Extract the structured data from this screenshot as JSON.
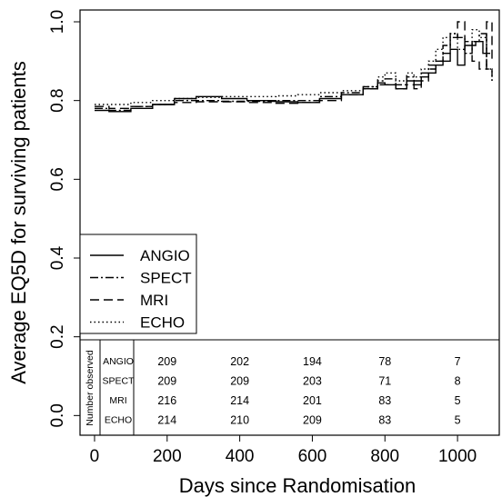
{
  "chart_data": {
    "type": "line",
    "xlabel": "Days since Randomisation",
    "ylabel": "Average EQ5D for surviving patients",
    "xlim": [
      -40,
      1115
    ],
    "ylim": [
      -0.05,
      1.03
    ],
    "x_ticks": [
      0,
      200,
      400,
      600,
      800,
      1000
    ],
    "y_ticks": [
      0.0,
      0.2,
      0.4,
      0.6,
      0.8,
      1.0
    ],
    "x_tick_labels": [
      "0",
      "200",
      "400",
      "600",
      "800",
      "1000"
    ],
    "y_tick_labels": [
      "0.0",
      "0.2",
      "0.4",
      "0.6",
      "0.8",
      "1.0"
    ],
    "grid": false,
    "legend_position": "bottom-left",
    "series": [
      {
        "name": "ANGIO",
        "style": "solid",
        "points": [
          [
            0,
            0.775
          ],
          [
            40,
            0.772
          ],
          [
            100,
            0.78
          ],
          [
            160,
            0.79
          ],
          [
            220,
            0.805
          ],
          [
            280,
            0.81
          ],
          [
            350,
            0.805
          ],
          [
            420,
            0.8
          ],
          [
            500,
            0.797
          ],
          [
            560,
            0.795
          ],
          [
            620,
            0.805
          ],
          [
            680,
            0.815
          ],
          [
            740,
            0.83
          ],
          [
            780,
            0.845
          ],
          [
            800,
            0.84
          ],
          [
            830,
            0.83
          ],
          [
            860,
            0.85
          ],
          [
            880,
            0.84
          ],
          [
            900,
            0.86
          ],
          [
            920,
            0.87
          ],
          [
            940,
            0.89
          ],
          [
            960,
            0.9
          ],
          [
            980,
            0.93
          ],
          [
            1000,
            0.89
          ],
          [
            1020,
            0.94
          ],
          [
            1050,
            0.95
          ],
          [
            1070,
            0.92
          ],
          [
            1090,
            0.92
          ]
        ]
      },
      {
        "name": "SPECT",
        "style": "dotdash",
        "points": [
          [
            0,
            0.78
          ],
          [
            40,
            0.775
          ],
          [
            100,
            0.785
          ],
          [
            160,
            0.79
          ],
          [
            220,
            0.8
          ],
          [
            280,
            0.8
          ],
          [
            350,
            0.798
          ],
          [
            420,
            0.798
          ],
          [
            500,
            0.8
          ],
          [
            560,
            0.8
          ],
          [
            620,
            0.81
          ],
          [
            680,
            0.82
          ],
          [
            740,
            0.835
          ],
          [
            780,
            0.85
          ],
          [
            800,
            0.855
          ],
          [
            830,
            0.84
          ],
          [
            860,
            0.86
          ],
          [
            880,
            0.85
          ],
          [
            900,
            0.87
          ],
          [
            920,
            0.89
          ],
          [
            940,
            0.9
          ],
          [
            960,
            0.94
          ],
          [
            980,
            0.97
          ],
          [
            1000,
            0.96
          ],
          [
            1020,
            0.92
          ],
          [
            1040,
            0.95
          ],
          [
            1060,
            0.97
          ],
          [
            1080,
            0.88
          ],
          [
            1095,
            0.85
          ]
        ]
      },
      {
        "name": "MRI",
        "style": "dashed",
        "points": [
          [
            0,
            0.785
          ],
          [
            40,
            0.78
          ],
          [
            100,
            0.785
          ],
          [
            160,
            0.79
          ],
          [
            220,
            0.795
          ],
          [
            280,
            0.797
          ],
          [
            350,
            0.797
          ],
          [
            420,
            0.795
          ],
          [
            500,
            0.793
          ],
          [
            560,
            0.795
          ],
          [
            620,
            0.8
          ],
          [
            680,
            0.815
          ],
          [
            740,
            0.83
          ],
          [
            780,
            0.84
          ],
          [
            800,
            0.84
          ],
          [
            830,
            0.83
          ],
          [
            860,
            0.84
          ],
          [
            880,
            0.83
          ],
          [
            900,
            0.85
          ],
          [
            920,
            0.88
          ],
          [
            940,
            0.9
          ],
          [
            960,
            0.92
          ],
          [
            980,
            0.96
          ],
          [
            1000,
            1.0
          ],
          [
            1020,
            0.95
          ],
          [
            1040,
            0.9
          ],
          [
            1060,
            0.88
          ],
          [
            1080,
            1.0
          ],
          [
            1095,
            0.9
          ]
        ]
      },
      {
        "name": "ECHO",
        "style": "dotted",
        "points": [
          [
            0,
            0.79
          ],
          [
            40,
            0.79
          ],
          [
            100,
            0.795
          ],
          [
            160,
            0.8
          ],
          [
            220,
            0.805
          ],
          [
            280,
            0.808
          ],
          [
            350,
            0.81
          ],
          [
            420,
            0.81
          ],
          [
            500,
            0.812
          ],
          [
            560,
            0.815
          ],
          [
            620,
            0.82
          ],
          [
            680,
            0.825
          ],
          [
            740,
            0.835
          ],
          [
            780,
            0.86
          ],
          [
            800,
            0.87
          ],
          [
            830,
            0.85
          ],
          [
            860,
            0.87
          ],
          [
            880,
            0.86
          ],
          [
            900,
            0.88
          ],
          [
            920,
            0.9
          ],
          [
            940,
            0.93
          ],
          [
            960,
            0.96
          ],
          [
            980,
            0.97
          ],
          [
            1000,
            0.93
          ],
          [
            1020,
            0.95
          ],
          [
            1040,
            0.98
          ],
          [
            1060,
            0.96
          ],
          [
            1080,
            0.88
          ],
          [
            1095,
            0.85
          ]
        ]
      }
    ],
    "number_observed": {
      "label": "Number observed",
      "at_days": [
        200,
        400,
        600,
        800,
        1000
      ],
      "rows": [
        {
          "name": "ANGIO",
          "values": [
            "209",
            "202",
            "194",
            "78",
            "7"
          ]
        },
        {
          "name": "SPECT",
          "values": [
            "209",
            "209",
            "203",
            "71",
            "8"
          ]
        },
        {
          "name": "MRI",
          "values": [
            "216",
            "214",
            "201",
            "83",
            "5"
          ]
        },
        {
          "name": "ECHO",
          "values": [
            "214",
            "210",
            "209",
            "83",
            "5"
          ]
        }
      ]
    }
  }
}
